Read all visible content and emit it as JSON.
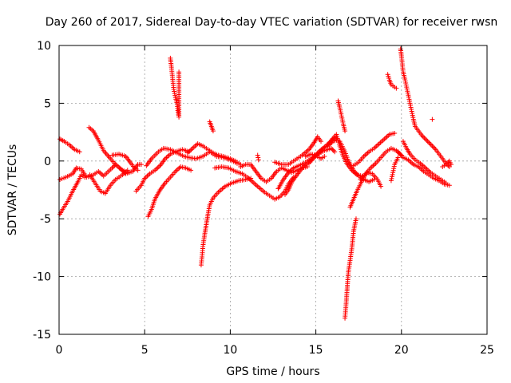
{
  "chart_data": {
    "type": "scatter",
    "title": "Day 260 of 2017, Sidereal Day-to-day VTEC variation (SDTVAR) for receiver rwsn",
    "xlabel": "GPS time / hours",
    "ylabel": "SDTVAR / TECUs",
    "xlim": [
      0,
      25
    ],
    "ylim": [
      -15,
      10
    ],
    "xticks": [
      0,
      5,
      10,
      15,
      20,
      25
    ],
    "yticks": [
      -15,
      -10,
      -5,
      0,
      5,
      10
    ],
    "grid": true,
    "marker": "+",
    "series_color": "#ff0000",
    "segments": [
      [
        [
          0.05,
          1.9
        ],
        [
          0.3,
          1.7
        ],
        [
          0.6,
          1.4
        ],
        [
          0.9,
          1.0
        ],
        [
          1.2,
          0.8
        ]
      ],
      [
        [
          0.05,
          -1.6
        ],
        [
          0.4,
          -1.4
        ],
        [
          0.8,
          -1.1
        ],
        [
          1.0,
          -0.6
        ],
        [
          1.3,
          -0.7
        ],
        [
          1.6,
          -1.4
        ],
        [
          2.0,
          -1.2
        ],
        [
          2.3,
          -0.9
        ],
        [
          2.6,
          -1.3
        ],
        [
          3.1,
          -0.6
        ],
        [
          3.3,
          -0.3
        ],
        [
          3.6,
          -0.7
        ],
        [
          3.9,
          -1.1
        ],
        [
          4.1,
          -1.0
        ]
      ],
      [
        [
          0.05,
          -4.6
        ],
        [
          0.2,
          -4.2
        ],
        [
          0.5,
          -3.5
        ],
        [
          0.8,
          -2.6
        ],
        [
          1.1,
          -1.8
        ],
        [
          1.3,
          -1.2
        ],
        [
          1.5,
          -1.4
        ]
      ],
      [
        [
          1.75,
          2.9
        ],
        [
          2.0,
          2.6
        ],
        [
          2.3,
          1.8
        ],
        [
          2.6,
          0.9
        ],
        [
          3.0,
          0.2
        ],
        [
          3.3,
          -0.3
        ],
        [
          3.7,
          -0.8
        ],
        [
          4.0,
          -1.0
        ],
        [
          4.3,
          -0.9
        ],
        [
          4.6,
          -0.3
        ],
        [
          4.8,
          -0.3
        ]
      ],
      [
        [
          1.8,
          -1.2
        ],
        [
          2.1,
          -1.9
        ],
        [
          2.4,
          -2.6
        ],
        [
          2.7,
          -2.8
        ],
        [
          3.0,
          -2.1
        ],
        [
          3.3,
          -1.6
        ],
        [
          3.7,
          -1.2
        ],
        [
          4.0,
          -0.8
        ]
      ],
      [
        [
          3.1,
          0.5
        ],
        [
          3.5,
          0.6
        ],
        [
          3.9,
          0.4
        ],
        [
          4.2,
          -0.2
        ],
        [
          4.4,
          -0.6
        ],
        [
          4.6,
          -0.8
        ]
      ],
      [
        [
          4.5,
          -2.6
        ],
        [
          4.8,
          -2.1
        ],
        [
          5.0,
          -1.5
        ],
        [
          5.3,
          -1.1
        ],
        [
          5.6,
          -0.8
        ],
        [
          5.9,
          -0.4
        ],
        [
          6.2,
          0.2
        ],
        [
          6.5,
          0.6
        ],
        [
          6.8,
          0.8
        ],
        [
          7.2,
          1.0
        ],
        [
          7.6,
          0.8
        ]
      ],
      [
        [
          5.1,
          -0.4
        ],
        [
          5.4,
          0.2
        ],
        [
          5.8,
          0.8
        ],
        [
          6.1,
          1.1
        ],
        [
          6.5,
          1.0
        ],
        [
          6.9,
          0.7
        ],
        [
          7.3,
          0.4
        ],
        [
          7.6,
          0.3
        ],
        [
          8.0,
          0.2
        ],
        [
          8.4,
          0.4
        ],
        [
          8.8,
          0.8
        ],
        [
          9.2,
          0.4
        ],
        [
          9.6,
          0.3
        ],
        [
          10.0,
          0.1
        ],
        [
          10.4,
          -0.2
        ]
      ],
      [
        [
          5.2,
          -4.8
        ],
        [
          5.4,
          -4.2
        ],
        [
          5.6,
          -3.3
        ],
        [
          5.9,
          -2.5
        ],
        [
          6.2,
          -1.9
        ],
        [
          6.5,
          -1.4
        ],
        [
          6.8,
          -0.9
        ],
        [
          7.1,
          -0.5
        ],
        [
          7.4,
          -0.6
        ],
        [
          7.7,
          -0.8
        ]
      ],
      [
        [
          6.5,
          8.9
        ],
        [
          6.55,
          8.3
        ],
        [
          6.6,
          7.6
        ],
        [
          6.65,
          6.9
        ],
        [
          6.7,
          6.2
        ],
        [
          6.8,
          5.5
        ],
        [
          6.9,
          4.9
        ],
        [
          6.95,
          4.2
        ],
        [
          7.0,
          3.8
        ],
        [
          7.0,
          7.7
        ]
      ],
      [
        [
          7.5,
          0.7
        ],
        [
          7.8,
          1.1
        ],
        [
          8.1,
          1.5
        ],
        [
          8.4,
          1.3
        ],
        [
          8.7,
          1.0
        ],
        [
          9.0,
          0.7
        ],
        [
          9.3,
          0.5
        ],
        [
          9.6,
          0.4
        ],
        [
          10.0,
          0.2
        ],
        [
          10.3,
          0.0
        ],
        [
          10.6,
          -0.3
        ]
      ],
      [
        [
          8.3,
          -9.0
        ],
        [
          8.35,
          -8.3
        ],
        [
          8.4,
          -7.4
        ],
        [
          8.5,
          -6.4
        ],
        [
          8.6,
          -5.5
        ],
        [
          8.7,
          -4.6
        ],
        [
          8.8,
          -3.8
        ],
        [
          9.0,
          -3.2
        ],
        [
          9.3,
          -2.7
        ],
        [
          9.7,
          -2.2
        ],
        [
          10.1,
          -1.9
        ],
        [
          10.5,
          -1.7
        ],
        [
          10.9,
          -1.6
        ],
        [
          11.2,
          -1.5
        ]
      ],
      [
        [
          8.8,
          3.4
        ],
        [
          8.9,
          3.0
        ],
        [
          9.0,
          2.6
        ]
      ],
      [
        [
          9.1,
          -0.6
        ],
        [
          9.5,
          -0.5
        ],
        [
          9.9,
          -0.6
        ],
        [
          10.3,
          -0.9
        ],
        [
          10.7,
          -1.1
        ],
        [
          11.0,
          -1.4
        ],
        [
          11.3,
          -1.8
        ],
        [
          11.6,
          -2.2
        ],
        [
          12.0,
          -2.7
        ],
        [
          12.3,
          -3.0
        ],
        [
          12.6,
          -3.3
        ],
        [
          12.9,
          -3.1
        ],
        [
          13.2,
          -2.6
        ],
        [
          13.4,
          -2.0
        ],
        [
          13.7,
          -1.4
        ]
      ],
      [
        [
          10.6,
          -0.5
        ],
        [
          10.9,
          -0.3
        ],
        [
          11.2,
          -0.3
        ],
        [
          11.5,
          -0.9
        ],
        [
          11.8,
          -1.5
        ],
        [
          12.1,
          -1.8
        ],
        [
          12.4,
          -1.5
        ],
        [
          12.7,
          -0.9
        ],
        [
          13.0,
          -0.6
        ],
        [
          13.3,
          -0.8
        ],
        [
          13.6,
          -1.0
        ],
        [
          13.9,
          -0.8
        ],
        [
          14.2,
          -0.6
        ],
        [
          14.5,
          -0.5
        ]
      ],
      [
        [
          11.6,
          0.5
        ],
        [
          11.65,
          0.1
        ]
      ],
      [
        [
          12.6,
          -0.1
        ],
        [
          13.0,
          -0.3
        ],
        [
          13.4,
          -0.3
        ],
        [
          13.8,
          0.1
        ],
        [
          14.2,
          0.5
        ],
        [
          14.6,
          1.0
        ],
        [
          14.9,
          1.6
        ],
        [
          15.1,
          2.1
        ],
        [
          15.3,
          1.7
        ]
      ],
      [
        [
          12.8,
          -2.4
        ],
        [
          13.1,
          -1.6
        ],
        [
          13.4,
          -1.0
        ],
        [
          13.7,
          -0.6
        ],
        [
          14.0,
          -0.4
        ],
        [
          14.3,
          -0.2
        ],
        [
          14.7,
          0.2
        ],
        [
          15.1,
          0.6
        ],
        [
          15.5,
          0.9
        ],
        [
          15.9,
          1.1
        ],
        [
          16.1,
          0.8
        ]
      ],
      [
        [
          13.2,
          -2.9
        ],
        [
          13.4,
          -2.5
        ],
        [
          13.6,
          -1.8
        ],
        [
          13.9,
          -1.2
        ],
        [
          14.2,
          -0.6
        ],
        [
          14.5,
          -0.2
        ],
        [
          14.8,
          0.2
        ],
        [
          15.1,
          0.7
        ],
        [
          15.4,
          1.1
        ],
        [
          15.7,
          1.3
        ],
        [
          16.0,
          1.7
        ],
        [
          16.2,
          1.8
        ]
      ],
      [
        [
          14.4,
          0.4
        ],
        [
          14.7,
          0.6
        ],
        [
          15.0,
          0.5
        ],
        [
          15.3,
          0.2
        ],
        [
          15.5,
          0.4
        ]
      ],
      [
        [
          14.6,
          -0.2
        ],
        [
          14.9,
          0.3
        ],
        [
          15.2,
          0.7
        ],
        [
          15.5,
          1.2
        ],
        [
          15.8,
          1.6
        ],
        [
          16.1,
          2.0
        ],
        [
          16.4,
          1.7
        ],
        [
          16.7,
          0.8
        ],
        [
          16.9,
          0.0
        ],
        [
          17.2,
          -0.8
        ],
        [
          17.5,
          -1.3
        ],
        [
          17.8,
          -1.6
        ],
        [
          18.1,
          -1.8
        ],
        [
          18.4,
          -1.6
        ]
      ],
      [
        [
          15.7,
          1.4
        ],
        [
          15.9,
          1.8
        ],
        [
          16.2,
          2.3
        ],
        [
          16.4,
          1.3
        ],
        [
          16.6,
          0.4
        ],
        [
          16.8,
          -0.2
        ],
        [
          17.1,
          -0.8
        ],
        [
          17.4,
          -1.2
        ],
        [
          17.7,
          -1.3
        ]
      ],
      [
        [
          16.3,
          5.2
        ],
        [
          16.4,
          4.6
        ],
        [
          16.5,
          3.9
        ],
        [
          16.6,
          3.2
        ],
        [
          16.7,
          2.6
        ]
      ],
      [
        [
          16.7,
          -13.6
        ],
        [
          16.75,
          -12.7
        ],
        [
          16.8,
          -11.7
        ],
        [
          16.85,
          -10.6
        ],
        [
          16.9,
          -9.6
        ],
        [
          17.0,
          -8.6
        ],
        [
          17.1,
          -7.6
        ],
        [
          17.2,
          -6.1
        ],
        [
          17.35,
          -5.0
        ]
      ],
      [
        [
          17.0,
          -4.0
        ],
        [
          17.2,
          -3.3
        ],
        [
          17.4,
          -2.6
        ],
        [
          17.6,
          -2.0
        ],
        [
          17.8,
          -1.4
        ],
        [
          18.0,
          -1.0
        ],
        [
          18.3,
          -1.1
        ],
        [
          18.6,
          -1.6
        ],
        [
          18.8,
          -2.2
        ]
      ],
      [
        [
          17.2,
          -0.4
        ],
        [
          17.5,
          -0.1
        ],
        [
          17.8,
          0.4
        ],
        [
          18.1,
          0.8
        ],
        [
          18.4,
          1.1
        ],
        [
          18.7,
          1.5
        ],
        [
          19.0,
          1.9
        ],
        [
          19.3,
          2.3
        ],
        [
          19.6,
          2.4
        ]
      ],
      [
        [
          17.6,
          -1.6
        ],
        [
          17.9,
          -1.1
        ],
        [
          18.2,
          -0.6
        ],
        [
          18.5,
          -0.2
        ],
        [
          18.8,
          0.3
        ],
        [
          19.1,
          0.8
        ],
        [
          19.4,
          1.1
        ],
        [
          19.7,
          0.9
        ],
        [
          20.0,
          0.5
        ]
      ],
      [
        [
          19.2,
          7.5
        ],
        [
          19.3,
          7.0
        ],
        [
          19.4,
          6.6
        ],
        [
          19.7,
          6.3
        ]
      ],
      [
        [
          19.4,
          -1.7
        ],
        [
          19.5,
          -1.0
        ],
        [
          19.6,
          -0.3
        ],
        [
          19.8,
          0.3
        ]
      ],
      [
        [
          19.95,
          9.7
        ],
        [
          20.0,
          9.1
        ],
        [
          20.05,
          8.4
        ],
        [
          20.1,
          7.7
        ],
        [
          20.2,
          7.1
        ],
        [
          20.3,
          6.4
        ],
        [
          20.4,
          5.7
        ],
        [
          20.5,
          5.0
        ],
        [
          20.6,
          4.3
        ],
        [
          20.7,
          3.6
        ],
        [
          20.8,
          3.0
        ],
        [
          21.0,
          2.6
        ],
        [
          21.2,
          2.2
        ],
        [
          21.4,
          1.9
        ],
        [
          21.6,
          1.6
        ],
        [
          21.8,
          1.3
        ],
        [
          22.0,
          1.0
        ],
        [
          22.2,
          0.6
        ],
        [
          22.4,
          0.2
        ],
        [
          22.6,
          -0.2
        ],
        [
          22.8,
          -0.5
        ]
      ],
      [
        [
          19.8,
          0.8
        ],
        [
          20.1,
          0.3
        ],
        [
          20.4,
          0.1
        ],
        [
          20.7,
          -0.3
        ],
        [
          21.0,
          -0.5
        ],
        [
          21.3,
          -0.9
        ],
        [
          21.6,
          -1.2
        ],
        [
          21.9,
          -1.5
        ],
        [
          22.2,
          -1.7
        ],
        [
          22.5,
          -2.0
        ],
        [
          22.8,
          -2.1
        ]
      ],
      [
        [
          20.1,
          1.7
        ],
        [
          20.3,
          1.1
        ],
        [
          20.5,
          0.6
        ],
        [
          20.8,
          0.1
        ],
        [
          21.1,
          -0.2
        ],
        [
          21.4,
          -0.6
        ],
        [
          21.7,
          -1.0
        ],
        [
          22.0,
          -1.3
        ],
        [
          22.3,
          -1.6
        ],
        [
          22.6,
          -1.9
        ]
      ],
      [
        [
          21.8,
          3.6
        ]
      ],
      [
        [
          22.4,
          -0.5
        ],
        [
          22.6,
          -0.3
        ],
        [
          22.8,
          0.0
        ],
        [
          22.9,
          -0.3
        ]
      ]
    ]
  }
}
